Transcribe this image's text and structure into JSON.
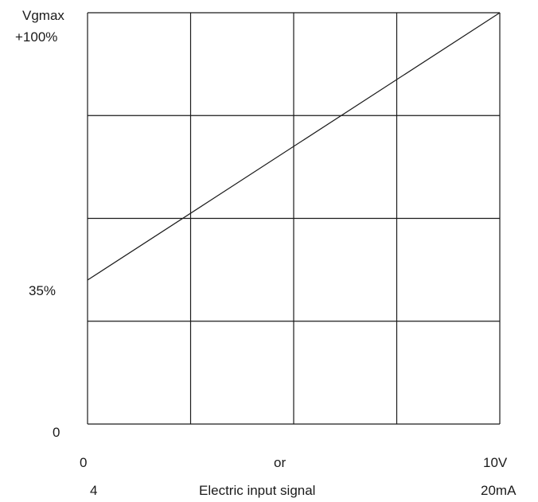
{
  "chart_data": {
    "type": "line",
    "y_label_top": "Vgmax",
    "y_ticks_labeled": [
      {
        "value": 100,
        "label": "+100%"
      },
      {
        "value": 35,
        "label": "35%"
      },
      {
        "value": 0,
        "label": "0"
      }
    ],
    "x_tick_left": {
      "volt": "0",
      "current": "4"
    },
    "x_tick_right": {
      "volt": "10V",
      "current": "20mA"
    },
    "x_mid_or": "or",
    "xlabel": "Electric input signal",
    "xlim": [
      0,
      10
    ],
    "ylim": [
      0,
      100
    ],
    "grid": true,
    "grid_x_divisions": 4,
    "grid_y_divisions": 4,
    "series": [
      {
        "x": [
          0,
          10
        ],
        "y": [
          35,
          100
        ]
      }
    ],
    "colors": {
      "line": "#1a1a1a",
      "grid": "#1a1a1a"
    }
  }
}
